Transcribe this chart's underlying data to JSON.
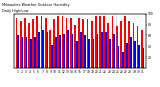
{
  "title": "Milwaukee Weather Outdoor Humidity",
  "subtitle": "Daily High/Low",
  "high_color": "#ff0000",
  "low_color": "#0000ff",
  "background_color": "#ffffff",
  "ylim": [
    0,
    100
  ],
  "yticks": [
    20,
    40,
    60,
    80,
    100
  ],
  "days": [
    1,
    2,
    3,
    4,
    5,
    6,
    7,
    8,
    9,
    10,
    11,
    12,
    13,
    14,
    15,
    16,
    17,
    18,
    19,
    20,
    21,
    22,
    23,
    24,
    25,
    26,
    27,
    28,
    29,
    30,
    31
  ],
  "highs": [
    93,
    87,
    93,
    83,
    90,
    97,
    97,
    93,
    70,
    90,
    97,
    97,
    93,
    93,
    80,
    93,
    90,
    90,
    87,
    97,
    97,
    97,
    83,
    97,
    77,
    87,
    97,
    87,
    83,
    77,
    70
  ],
  "lows": [
    60,
    57,
    57,
    53,
    57,
    67,
    70,
    67,
    43,
    57,
    60,
    63,
    70,
    63,
    50,
    67,
    60,
    53,
    53,
    63,
    67,
    67,
    53,
    63,
    40,
    30,
    47,
    57,
    50,
    43,
    37
  ],
  "divider_after": 24,
  "legend_labels": [
    "Low",
    "High"
  ],
  "legend_colors": [
    "#0000ff",
    "#ff0000"
  ]
}
